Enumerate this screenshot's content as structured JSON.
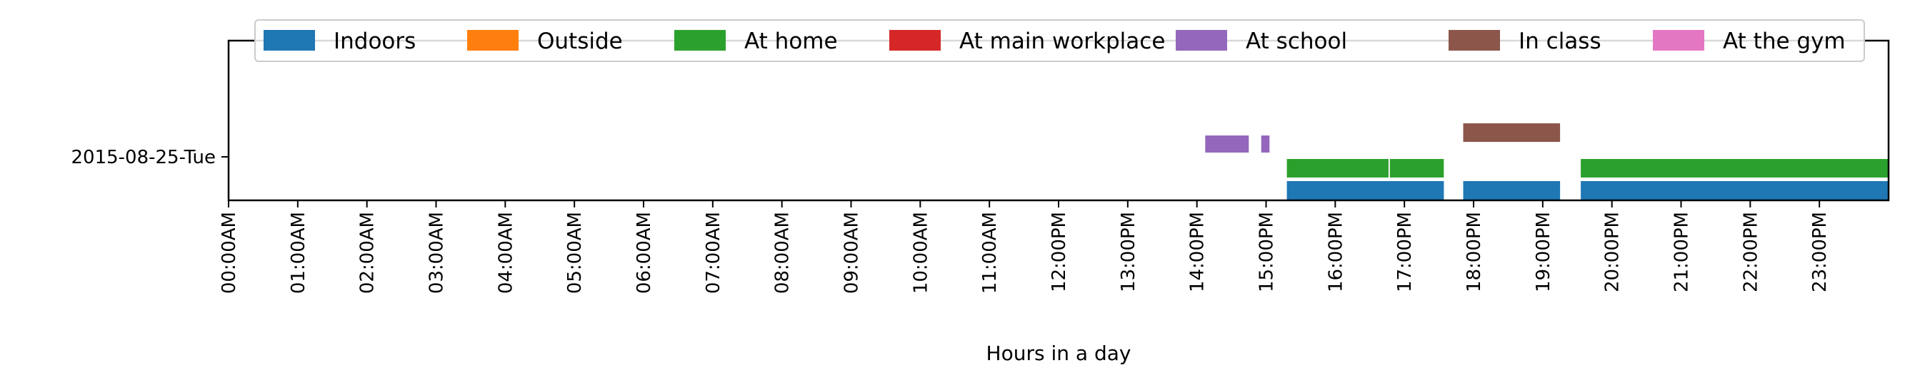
{
  "chart_data": {
    "type": "timeline",
    "xlabel": "Hours in a day",
    "x_range_hours": [
      0,
      24
    ],
    "x_ticks": [
      "00:00AM",
      "01:00AM",
      "02:00AM",
      "03:00AM",
      "04:00AM",
      "05:00AM",
      "06:00AM",
      "07:00AM",
      "08:00AM",
      "09:00AM",
      "10:00AM",
      "11:00AM",
      "12:00PM",
      "13:00PM",
      "14:00PM",
      "15:00PM",
      "16:00PM",
      "17:00PM",
      "18:00PM",
      "19:00PM",
      "20:00PM",
      "21:00PM",
      "22:00PM",
      "23:00PM"
    ],
    "y_categories": [
      "2015-08-25-Tue"
    ],
    "legend_position": "top",
    "series": [
      {
        "name": "Indoors",
        "color": "#1f77b4",
        "lane": 0,
        "intervals": [
          [
            15.3,
            17.57
          ],
          [
            17.85,
            19.25
          ],
          [
            19.55,
            24.0
          ]
        ]
      },
      {
        "name": "Outside",
        "color": "#ff7f0e",
        "lane": 0,
        "intervals": []
      },
      {
        "name": "At home",
        "color": "#2ca02c",
        "lane": 1,
        "intervals": [
          [
            15.3,
            16.77
          ],
          [
            16.79,
            17.57
          ],
          [
            19.55,
            24.0
          ]
        ]
      },
      {
        "name": "At main workplace",
        "color": "#d62728",
        "lane": 1,
        "intervals": []
      },
      {
        "name": "At school",
        "color": "#9467bd",
        "lane": 2,
        "intervals": [
          [
            14.12,
            14.75
          ],
          [
            14.93,
            15.05
          ]
        ]
      },
      {
        "name": "In class",
        "color": "#8c564b",
        "lane": 3,
        "intervals": [
          [
            17.85,
            19.25
          ]
        ]
      },
      {
        "name": "At the gym",
        "color": "#e377c2",
        "lane": 3,
        "intervals": []
      }
    ]
  }
}
